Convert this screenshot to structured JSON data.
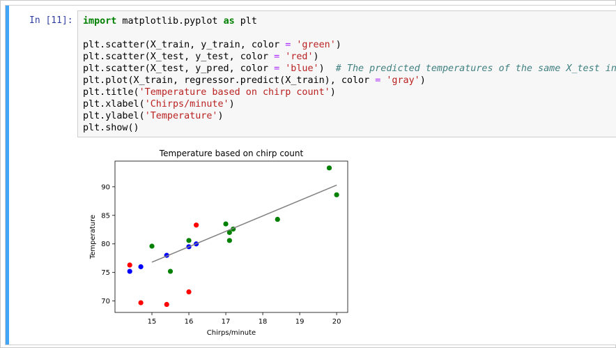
{
  "cell": {
    "prompt": "In [11]:",
    "code_lines": [
      [
        {
          "t": "import",
          "c": "kw"
        },
        {
          "t": " matplotlib.pyplot ",
          "c": ""
        },
        {
          "t": "as",
          "c": "kw"
        },
        {
          "t": " plt",
          "c": ""
        }
      ],
      [],
      [
        {
          "t": "plt.scatter(X_train, y_train, color ",
          "c": ""
        },
        {
          "t": "=",
          "c": "op"
        },
        {
          "t": " ",
          "c": ""
        },
        {
          "t": "'green'",
          "c": "str"
        },
        {
          "t": ")",
          "c": ""
        }
      ],
      [
        {
          "t": "plt.scatter(X_test, y_test, color ",
          "c": ""
        },
        {
          "t": "=",
          "c": "op"
        },
        {
          "t": " ",
          "c": ""
        },
        {
          "t": "'red'",
          "c": "str"
        },
        {
          "t": ")",
          "c": ""
        }
      ],
      [
        {
          "t": "plt.scatter(X_test, y_pred, color ",
          "c": ""
        },
        {
          "t": "=",
          "c": "op"
        },
        {
          "t": " ",
          "c": ""
        },
        {
          "t": "'blue'",
          "c": "str"
        },
        {
          "t": ")  ",
          "c": ""
        },
        {
          "t": "# The predicted temperatures of the same X_test input.",
          "c": "cmt"
        }
      ],
      [
        {
          "t": "plt.plot(X_train, regressor.predict(X_train), color ",
          "c": ""
        },
        {
          "t": "=",
          "c": "op"
        },
        {
          "t": " ",
          "c": ""
        },
        {
          "t": "'gray'",
          "c": "str"
        },
        {
          "t": ")",
          "c": ""
        }
      ],
      [
        {
          "t": "plt.title(",
          "c": ""
        },
        {
          "t": "'Temperature based on chirp count'",
          "c": "str"
        },
        {
          "t": ")",
          "c": ""
        }
      ],
      [
        {
          "t": "plt.xlabel(",
          "c": ""
        },
        {
          "t": "'Chirps/minute'",
          "c": "str"
        },
        {
          "t": ")",
          "c": ""
        }
      ],
      [
        {
          "t": "plt.ylabel(",
          "c": ""
        },
        {
          "t": "'Temperature'",
          "c": "str"
        },
        {
          "t": ")",
          "c": ""
        }
      ],
      [
        {
          "t": "plt.show()",
          "c": ""
        }
      ]
    ]
  },
  "chart_data": {
    "type": "scatter",
    "title": "Temperature based on chirp count",
    "xlabel": "Chirps/minute",
    "ylabel": "Temperature",
    "xlim": [
      14.0,
      20.3
    ],
    "ylim": [
      68.0,
      94.5
    ],
    "xticks": [
      15,
      16,
      17,
      18,
      19,
      20
    ],
    "yticks": [
      70,
      75,
      80,
      85,
      90
    ],
    "grid": false,
    "series": [
      {
        "color": "#008000",
        "kind": "scatter",
        "points": [
          [
            15.0,
            79.6
          ],
          [
            16.0,
            80.6
          ],
          [
            15.5,
            75.2
          ],
          [
            17.0,
            83.5
          ],
          [
            17.1,
            82.0
          ],
          [
            17.2,
            82.6
          ],
          [
            17.1,
            80.6
          ],
          [
            18.4,
            84.3
          ],
          [
            19.8,
            93.3
          ],
          [
            20.0,
            88.6
          ]
        ]
      },
      {
        "color": "#ff0000",
        "kind": "scatter",
        "points": [
          [
            14.4,
            76.3
          ],
          [
            14.7,
            69.7
          ],
          [
            15.4,
            69.4
          ],
          [
            16.0,
            71.6
          ],
          [
            16.2,
            83.3
          ]
        ]
      },
      {
        "color": "#0000ff",
        "kind": "scatter",
        "points": [
          [
            14.4,
            75.2
          ],
          [
            14.7,
            76.0
          ],
          [
            15.4,
            78.0
          ],
          [
            16.0,
            79.5
          ],
          [
            16.2,
            80.0
          ]
        ]
      },
      {
        "color": "#808080",
        "kind": "line",
        "points": [
          [
            15.0,
            76.8
          ],
          [
            20.0,
            90.3
          ]
        ]
      }
    ]
  }
}
